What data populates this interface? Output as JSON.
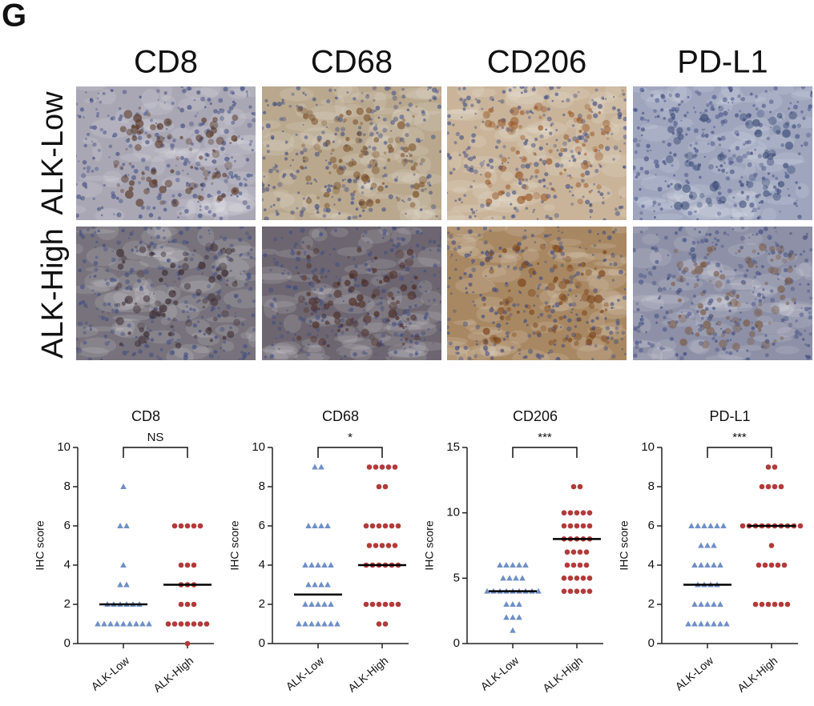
{
  "panel_label": "G",
  "image_grid": {
    "columns": [
      "CD8",
      "CD68",
      "CD206",
      "PD-L1"
    ],
    "rows": [
      "ALK-Low",
      "ALK-High"
    ]
  },
  "chart_data": [
    {
      "type": "dotplot",
      "title": "CD8",
      "ylabel": "IHC score",
      "categories": [
        "ALK-Low",
        "ALK-High"
      ],
      "ylim": [
        0,
        10
      ],
      "yticks": [
        0,
        2,
        4,
        6,
        8,
        10
      ],
      "significance": "NS",
      "groups": [
        {
          "marker": "triangle",
          "color": "#6f8fc6",
          "values": [
            1,
            1,
            1,
            1,
            1,
            1,
            1,
            1,
            1,
            2,
            2,
            2,
            2,
            2,
            2,
            3,
            3,
            4,
            6,
            6,
            8
          ],
          "median": 2
        },
        {
          "marker": "circle",
          "color": "#b23a3a",
          "values": [
            0,
            1,
            1,
            1,
            1,
            1,
            1,
            1,
            2,
            2,
            2,
            3,
            3,
            3,
            4,
            4,
            4,
            6,
            6,
            6,
            6,
            6
          ],
          "median": 3
        }
      ]
    },
    {
      "type": "dotplot",
      "title": "CD68",
      "ylabel": "IHC score",
      "categories": [
        "ALK-Low",
        "ALK-High"
      ],
      "ylim": [
        0,
        10
      ],
      "yticks": [
        0,
        2,
        4,
        6,
        8,
        10
      ],
      "significance": "*",
      "groups": [
        {
          "marker": "triangle",
          "color": "#6f8fc6",
          "values": [
            1,
            1,
            1,
            1,
            1,
            1,
            1,
            2,
            2,
            2,
            2,
            2,
            3,
            3,
            3,
            3,
            4,
            4,
            4,
            4,
            4,
            6,
            6,
            6,
            6,
            9,
            9
          ],
          "median": 2.5
        },
        {
          "marker": "circle",
          "color": "#b23a3a",
          "values": [
            1,
            1,
            2,
            2,
            2,
            2,
            2,
            2,
            4,
            4,
            4,
            4,
            4,
            4,
            5,
            5,
            5,
            5,
            5,
            6,
            6,
            6,
            6,
            6,
            6,
            8,
            8,
            9,
            9,
            9,
            9,
            9
          ],
          "median": 4
        }
      ]
    },
    {
      "type": "dotplot",
      "title": "CD206",
      "ylabel": "IHC score",
      "categories": [
        "ALK-Low",
        "ALK-High"
      ],
      "ylim": [
        0,
        15
      ],
      "yticks": [
        0,
        5,
        10,
        15
      ],
      "significance": "***",
      "groups": [
        {
          "marker": "triangle",
          "color": "#6f8fc6",
          "values": [
            1,
            2,
            2,
            2,
            3,
            3,
            3,
            4,
            4,
            4,
            4,
            4,
            4,
            4,
            4,
            4,
            5,
            5,
            5,
            5,
            6,
            6,
            6,
            6,
            6
          ],
          "median": 4
        },
        {
          "marker": "circle",
          "color": "#b23a3a",
          "values": [
            4,
            4,
            4,
            4,
            4,
            5,
            5,
            5,
            5,
            5,
            6,
            6,
            6,
            6,
            7,
            7,
            7,
            7,
            8,
            8,
            8,
            8,
            8,
            9,
            9,
            9,
            9,
            9,
            10,
            10,
            10,
            10,
            10,
            12,
            12
          ],
          "median": 8
        }
      ]
    },
    {
      "type": "dotplot",
      "title": "PD-L1",
      "ylabel": "IHC score",
      "categories": [
        "ALK-Low",
        "ALK-High"
      ],
      "ylim": [
        0,
        10
      ],
      "yticks": [
        0,
        2,
        4,
        6,
        8,
        10
      ],
      "significance": "***",
      "groups": [
        {
          "marker": "triangle",
          "color": "#6f8fc6",
          "values": [
            1,
            1,
            1,
            1,
            1,
            1,
            1,
            2,
            2,
            2,
            2,
            2,
            3,
            3,
            3,
            3,
            4,
            4,
            4,
            4,
            4,
            5,
            5,
            5,
            6,
            6,
            6,
            6,
            6,
            6
          ],
          "median": 3
        },
        {
          "marker": "circle",
          "color": "#b23a3a",
          "values": [
            2,
            2,
            2,
            2,
            2,
            2,
            4,
            4,
            4,
            4,
            4,
            5,
            6,
            6,
            6,
            6,
            6,
            6,
            6,
            6,
            6,
            6,
            8,
            8,
            8,
            8,
            9,
            9
          ],
          "median": 6
        }
      ]
    }
  ]
}
